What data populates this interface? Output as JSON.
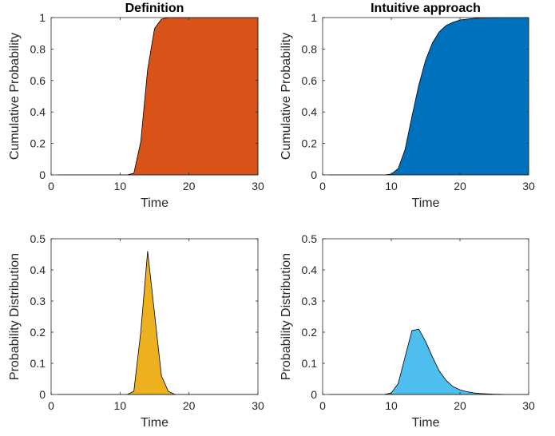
{
  "chart_data": [
    {
      "type": "area",
      "title": "Definition",
      "xlabel": "Time",
      "ylabel": "Cumulative Probability",
      "xlim": [
        0,
        30
      ],
      "ylim": [
        0,
        1
      ],
      "xticks": [
        "0",
        "10",
        "20",
        "30"
      ],
      "yticks": [
        "0",
        "0.2",
        "0.4",
        "0.6",
        "0.8",
        "1"
      ],
      "color": "#D95319",
      "grid": false,
      "series": [
        {
          "x": [
            1,
            2,
            3,
            4,
            5,
            6,
            7,
            8,
            9,
            10,
            11,
            12,
            13,
            14,
            15,
            16,
            17,
            18,
            19,
            20,
            21,
            22,
            23,
            24,
            25,
            26,
            27,
            28,
            29,
            30
          ],
          "values": [
            0,
            0,
            0,
            0,
            0,
            0,
            0,
            0,
            0,
            0,
            0,
            0.01,
            0.21,
            0.67,
            0.93,
            0.99,
            1,
            1,
            1,
            1,
            1,
            1,
            1,
            1,
            1,
            1,
            1,
            1,
            1,
            1
          ]
        }
      ]
    },
    {
      "type": "area",
      "title": "Intuitive approach",
      "xlabel": "Time",
      "ylabel": "Cumulative Probability",
      "xlim": [
        0,
        30
      ],
      "ylim": [
        0,
        1
      ],
      "xticks": [
        "0",
        "10",
        "20",
        "30"
      ],
      "yticks": [
        "0",
        "0.2",
        "0.4",
        "0.6",
        "0.8",
        "1"
      ],
      "color": "#0072BD",
      "grid": false,
      "series": [
        {
          "x": [
            1,
            2,
            3,
            4,
            5,
            6,
            7,
            8,
            9,
            10,
            11,
            12,
            13,
            14,
            15,
            16,
            17,
            18,
            19,
            20,
            21,
            22,
            23,
            24,
            25,
            26,
            27,
            28,
            29,
            30
          ],
          "values": [
            0,
            0,
            0,
            0,
            0,
            0,
            0,
            0,
            0,
            0.005,
            0.04,
            0.16,
            0.37,
            0.57,
            0.73,
            0.84,
            0.91,
            0.95,
            0.97,
            0.985,
            0.99,
            0.995,
            0.997,
            0.998,
            0.999,
            1,
            1,
            1,
            1,
            1
          ]
        }
      ]
    },
    {
      "type": "area",
      "title": "",
      "xlabel": "Time",
      "ylabel": "Probability Distribution",
      "xlim": [
        0,
        30
      ],
      "ylim": [
        0,
        0.5
      ],
      "xticks": [
        "0",
        "10",
        "20",
        "30"
      ],
      "yticks": [
        "0",
        "0.1",
        "0.2",
        "0.3",
        "0.4",
        "0.5"
      ],
      "color": "#EDB120",
      "grid": false,
      "series": [
        {
          "x": [
            1,
            2,
            3,
            4,
            5,
            6,
            7,
            8,
            9,
            10,
            11,
            12,
            13,
            14,
            15,
            16,
            17,
            18,
            19,
            20,
            21,
            22,
            23,
            24,
            25,
            26,
            27,
            28,
            29,
            30
          ],
          "values": [
            0,
            0,
            0,
            0,
            0,
            0,
            0,
            0,
            0,
            0,
            0,
            0.01,
            0.2,
            0.46,
            0.26,
            0.06,
            0.01,
            0,
            0,
            0,
            0,
            0,
            0,
            0,
            0,
            0,
            0,
            0,
            0,
            0
          ]
        }
      ]
    },
    {
      "type": "area",
      "title": "",
      "xlabel": "Time",
      "ylabel": "Probability Distribution",
      "xlim": [
        0,
        30
      ],
      "ylim": [
        0,
        0.5
      ],
      "xticks": [
        "0",
        "10",
        "20",
        "30"
      ],
      "yticks": [
        "0",
        "0.1",
        "0.2",
        "0.3",
        "0.4",
        "0.5"
      ],
      "color": "#4DBEEE",
      "grid": false,
      "series": [
        {
          "x": [
            1,
            2,
            3,
            4,
            5,
            6,
            7,
            8,
            9,
            10,
            11,
            12,
            13,
            14,
            15,
            16,
            17,
            18,
            19,
            20,
            21,
            22,
            23,
            24,
            25,
            26,
            27,
            28,
            29,
            30
          ],
          "values": [
            0,
            0,
            0,
            0,
            0,
            0,
            0,
            0,
            0,
            0.005,
            0.035,
            0.12,
            0.205,
            0.21,
            0.17,
            0.12,
            0.075,
            0.045,
            0.025,
            0.015,
            0.009,
            0.005,
            0.003,
            0.002,
            0.001,
            0.0005,
            0,
            0,
            0,
            0
          ]
        }
      ]
    }
  ]
}
